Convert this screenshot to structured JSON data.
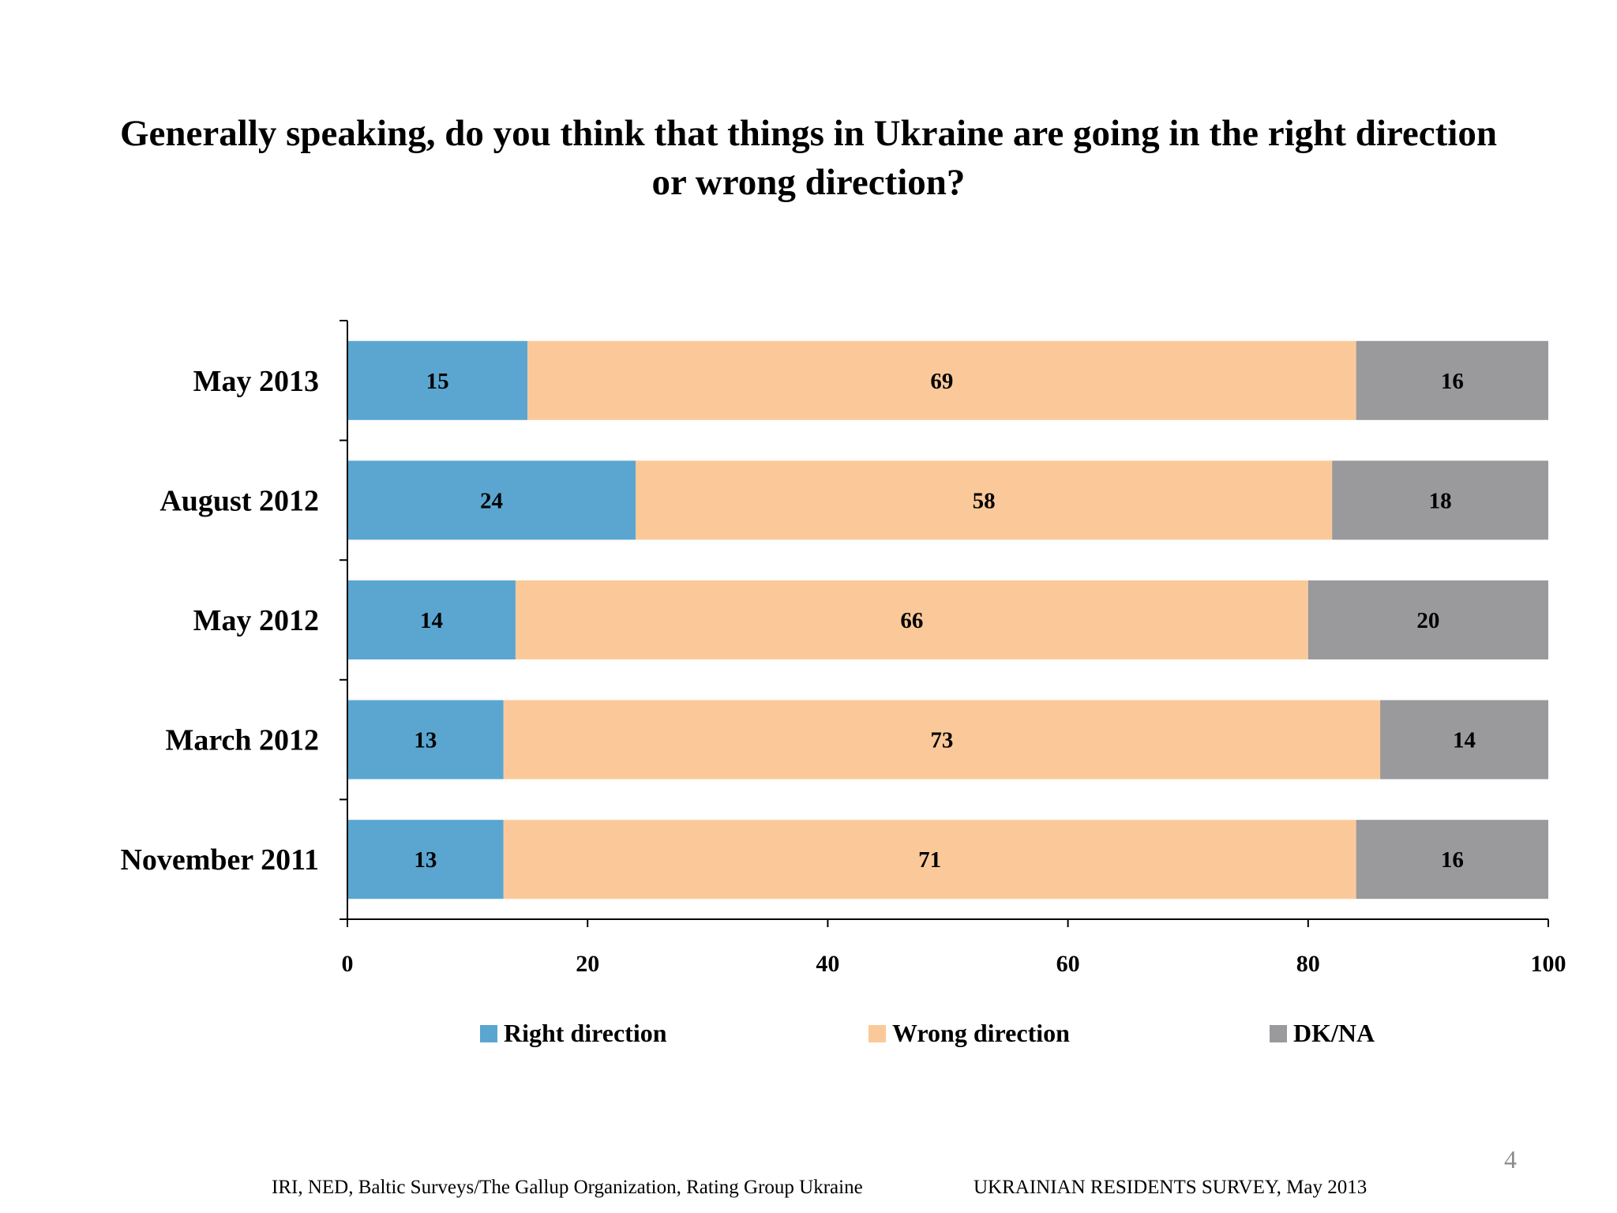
{
  "slide": {
    "title_line1": "Generally speaking, do you think that things in Ukraine are going in the right direction",
    "title_line2": "or wrong direction?",
    "footer_source": "IRI, NED,  Baltic Surveys/The Gallup Organization, Rating Group Ukraine",
    "footer_survey": "UKRAINIAN RESIDENTS SURVEY, May  2013",
    "page_number": "4"
  },
  "chart_data": {
    "type": "bar",
    "orientation": "horizontal",
    "stacked": true,
    "title": "Generally speaking, do you think that things in Ukraine are going in the right direction or wrong direction?",
    "categories": [
      "May 2013",
      "August 2012",
      "May 2012",
      "March 2012",
      "November 2011"
    ],
    "series": [
      {
        "name": "Right direction",
        "color": "#5aa6d1",
        "values": [
          15,
          24,
          14,
          13,
          13
        ]
      },
      {
        "name": "Wrong direction",
        "color": "#fbc999",
        "values": [
          69,
          58,
          66,
          73,
          71
        ]
      },
      {
        "name": "DK/NA",
        "color": "#9a999b",
        "values": [
          16,
          18,
          20,
          14,
          16
        ]
      }
    ],
    "xlim": [
      0,
      100
    ],
    "xticks": [
      0,
      20,
      40,
      60,
      80,
      100
    ],
    "xlabel": "",
    "ylabel": "",
    "grid": false,
    "legend_position": "bottom",
    "data_labels": true
  }
}
